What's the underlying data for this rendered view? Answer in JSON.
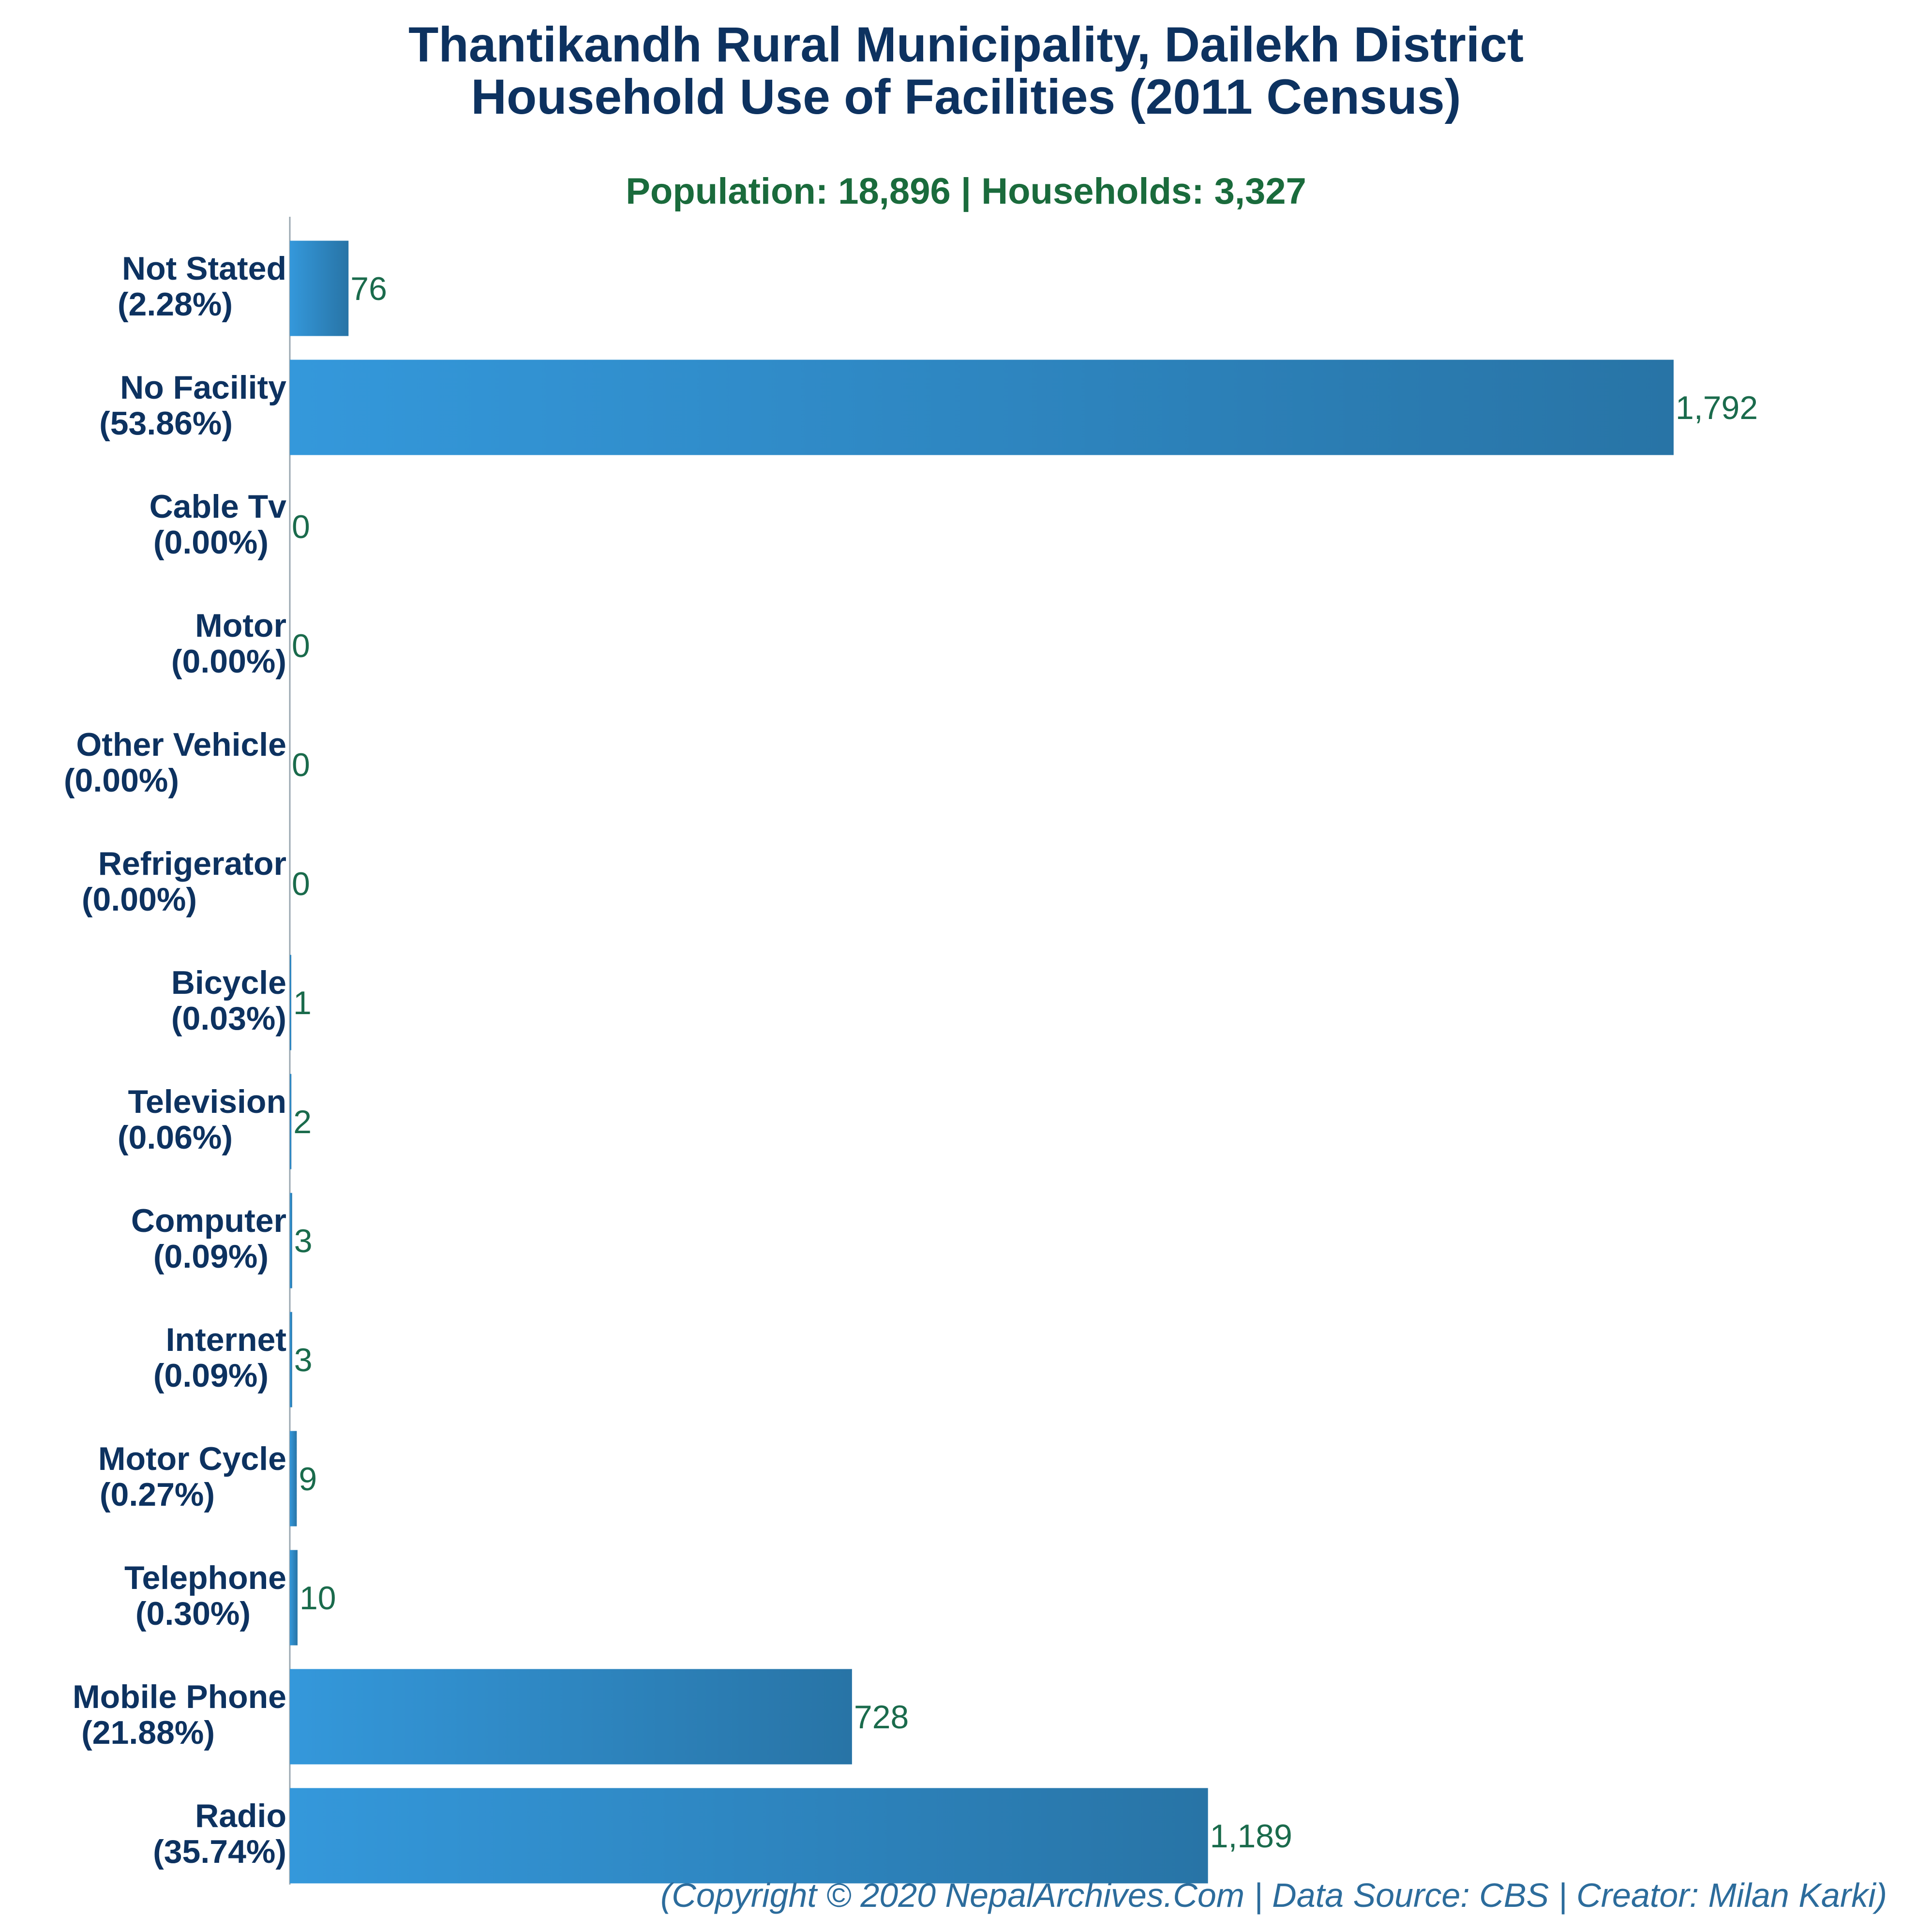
{
  "chart_data": {
    "type": "bar",
    "orientation": "horizontal",
    "title": "Thantikandh Rural Municipality, Dailekh District",
    "title_line2": "Household Use of Facilities (2011 Census)",
    "subtitle": "Population: 18,896 | Households: 3,327",
    "footer": "(Copyright © 2020 NepalArchives.Com | Data Source: CBS | Creator: Milan Karki)",
    "xlim": [
      0,
      1900
    ],
    "grid": false,
    "bar_color_start": "#3498db",
    "bar_color_end": "#2874a6",
    "title_color": "#0d3260",
    "subtitle_color": "#1a6b3c",
    "value_label_color": "#1a6b4c",
    "footer_color": "#2c6c9c",
    "categories": [
      {
        "name": "Not Stated",
        "pct": "(2.28%)",
        "value": 76,
        "value_label": "76"
      },
      {
        "name": "No Facility",
        "pct": "(53.86%)",
        "value": 1792,
        "value_label": "1,792"
      },
      {
        "name": "Cable Tv",
        "pct": "(0.00%)",
        "value": 0,
        "value_label": "0"
      },
      {
        "name": "Motor",
        "pct": "(0.00%)",
        "value": 0,
        "value_label": "0"
      },
      {
        "name": "Other Vehicle",
        "pct": "(0.00%)",
        "value": 0,
        "value_label": "0"
      },
      {
        "name": "Refrigerator",
        "pct": "(0.00%)",
        "value": 0,
        "value_label": "0"
      },
      {
        "name": "Bicycle",
        "pct": "(0.03%)",
        "value": 1,
        "value_label": "1"
      },
      {
        "name": "Television",
        "pct": "(0.06%)",
        "value": 2,
        "value_label": "2"
      },
      {
        "name": "Computer",
        "pct": "(0.09%)",
        "value": 3,
        "value_label": "3"
      },
      {
        "name": "Internet",
        "pct": "(0.09%)",
        "value": 3,
        "value_label": "3"
      },
      {
        "name": "Motor Cycle",
        "pct": "(0.27%)",
        "value": 9,
        "value_label": "9"
      },
      {
        "name": "Telephone",
        "pct": "(0.30%)",
        "value": 10,
        "value_label": "10"
      },
      {
        "name": "Mobile Phone",
        "pct": "(21.88%)",
        "value": 728,
        "value_label": "728"
      },
      {
        "name": "Radio",
        "pct": "(35.74%)",
        "value": 1189,
        "value_label": "1,189"
      }
    ]
  }
}
